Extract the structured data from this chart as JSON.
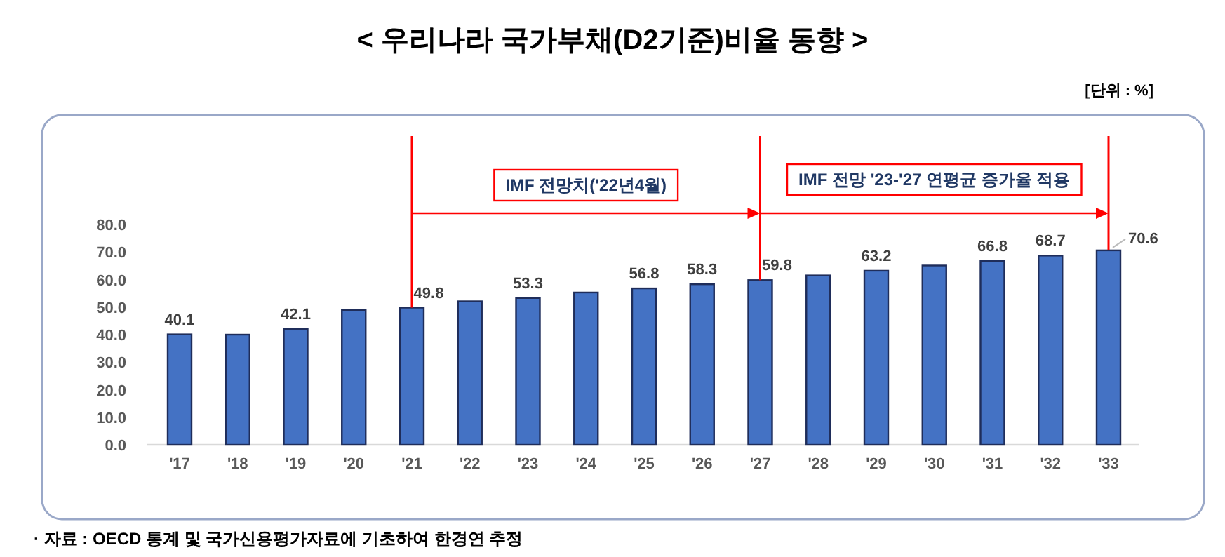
{
  "chart_data": {
    "type": "bar",
    "title": "< 우리나라 국가부채(D2기준)비율 동향 >",
    "categories": [
      "'17",
      "'18",
      "'19",
      "'20",
      "'21",
      "'22",
      "'23",
      "'24",
      "'25",
      "'26",
      "'27",
      "'28",
      "'29",
      "'30",
      "'31",
      "'32",
      "'33"
    ],
    "values": [
      40.1,
      40.0,
      42.1,
      48.9,
      49.8,
      52.1,
      53.3,
      55.3,
      56.8,
      58.3,
      59.8,
      61.5,
      63.2,
      65.1,
      66.8,
      68.7,
      70.6
    ],
    "value_labels": [
      "40.1",
      null,
      "42.1",
      null,
      "49.8",
      null,
      "53.3",
      null,
      "56.8",
      "58.3",
      "59.8",
      null,
      "63.2",
      null,
      "66.8",
      "68.7",
      "70.6"
    ],
    "color": "#4472c4",
    "ylim": [
      0,
      80
    ],
    "yticks": [
      {
        "value": 0,
        "label": "0.0"
      },
      {
        "value": 10,
        "label": "10.0"
      },
      {
        "value": 20,
        "label": "20.0"
      },
      {
        "value": 30,
        "label": "30.0"
      },
      {
        "value": 40,
        "label": "40.0"
      },
      {
        "value": 50,
        "label": "50.0"
      },
      {
        "value": 60,
        "label": "60.0"
      },
      {
        "value": 70,
        "label": "70.0"
      },
      {
        "value": 80,
        "label": "80.0"
      }
    ],
    "ref_lines": [
      {
        "axis": "x",
        "value": "'21",
        "color": "#ff0000"
      },
      {
        "axis": "x",
        "value": "'27",
        "color": "#ff0000"
      },
      {
        "axis": "x",
        "value": "'33",
        "color": "#ff0000"
      }
    ],
    "annotations": [
      "[단위 : %]",
      "· 자료 : OECD 통계 및 국가신용평가자료에 기초하여 한경연 추정",
      "IMF 전망치('22년4월)",
      "IMF 전망 '23-'27 연평균 증가율 적용"
    ]
  }
}
